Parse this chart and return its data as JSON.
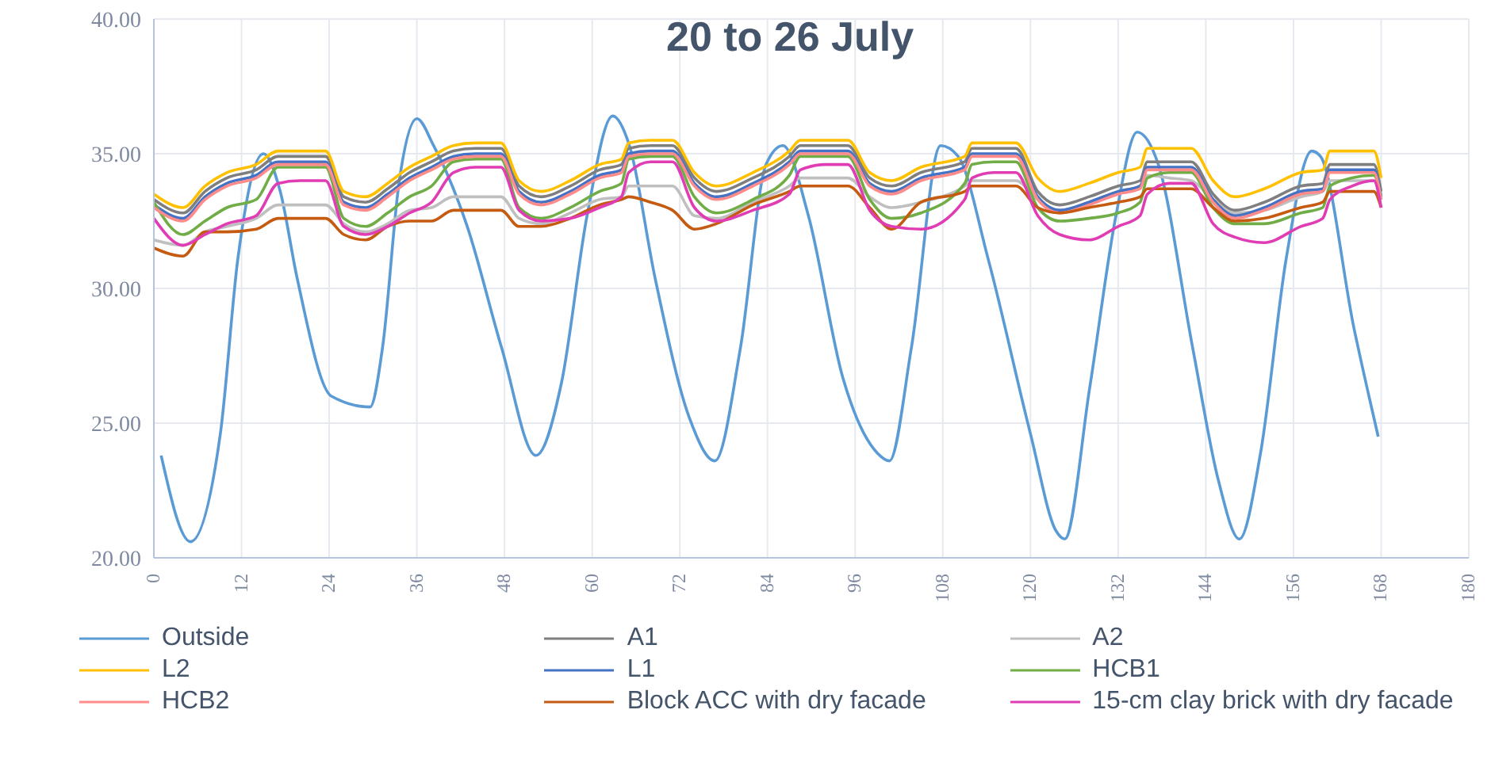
{
  "chart_data": {
    "type": "line",
    "title": "20 to 26 July",
    "xlim": [
      0,
      180
    ],
    "xticks": [
      0,
      12,
      24,
      36,
      48,
      60,
      72,
      84,
      96,
      108,
      120,
      132,
      144,
      156,
      168,
      180
    ],
    "ylim": [
      20,
      40
    ],
    "yticks": [
      {
        "value": 20,
        "label": "20.00"
      },
      {
        "value": 25,
        "label": "25.00"
      },
      {
        "value": 30,
        "label": "30.00"
      },
      {
        "value": 35,
        "label": "35.00"
      },
      {
        "value": 40,
        "label": "40.00"
      }
    ],
    "grid": true,
    "legend": "bottom",
    "marker": "none",
    "line_style": "solid",
    "x": [
      0,
      4,
      7,
      10,
      14,
      17,
      20,
      23.5,
      26,
      29,
      32,
      35,
      38,
      41,
      44,
      47.5,
      50,
      53,
      57,
      61,
      64,
      65,
      68,
      71,
      74,
      77,
      82,
      87,
      88.5,
      92,
      95,
      98,
      101,
      105,
      111,
      112,
      115,
      118,
      121,
      124,
      128,
      132,
      135,
      136,
      139,
      142,
      145,
      148,
      152,
      157,
      160,
      161,
      164,
      167,
      168
    ],
    "series": [
      {
        "name": "Outside",
        "color": "#5b9bd5",
        "x": [
          1,
          5,
          9.1,
          11.5,
          15,
          17.3,
          19.6,
          24.3,
          29.6,
          31.3,
          33.6,
          36,
          38.3,
          42.9,
          47.6,
          52.3,
          55.8,
          59.3,
          62.8,
          65.1,
          68.6,
          73.3,
          76.8,
          80.3,
          83.8,
          86.1,
          89.6,
          94.3,
          99,
          100.7,
          103.7,
          107.7,
          110.1,
          114.2,
          120,
          123.5,
          124.7,
          128.1,
          131.7,
          134.6,
          137.5,
          142.2,
          145.7,
          148.6,
          151.5,
          155,
          158.5,
          159.7,
          164.3,
          167.6
        ],
        "values": [
          23.8,
          20.6,
          24.6,
          31.1,
          35,
          33.6,
          30.4,
          26.0,
          25.6,
          27.8,
          34.0,
          36.3,
          35.3,
          32.3,
          27.8,
          23.8,
          26.5,
          32.7,
          36.4,
          35.3,
          30.4,
          25.2,
          23.6,
          27.8,
          34.6,
          35.3,
          32.7,
          26.7,
          23.9,
          23.6,
          27.8,
          35.3,
          34.9,
          31.1,
          24.6,
          21.0,
          20.7,
          26.3,
          32.7,
          35.8,
          34.6,
          27.8,
          22.9,
          20.7,
          23.9,
          31.1,
          35.1,
          34.9,
          28.5,
          24.5
        ]
      },
      {
        "name": "A1",
        "color": "#7f7f7f",
        "values": [
          33.3,
          32.8,
          33.6,
          34.1,
          34.4,
          34.9,
          34.9,
          34.9,
          33.4,
          33.2,
          33.7,
          34.3,
          34.7,
          35.1,
          35.2,
          35.2,
          33.8,
          33.4,
          33.8,
          34.4,
          34.6,
          35.2,
          35.3,
          35.3,
          34.1,
          33.6,
          34.1,
          34.9,
          35.3,
          35.3,
          35.3,
          34.1,
          33.8,
          34.3,
          34.7,
          35.2,
          35.2,
          35.2,
          33.6,
          33.1,
          33.4,
          33.8,
          34.0,
          34.7,
          34.7,
          34.7,
          33.5,
          32.9,
          33.2,
          33.8,
          33.9,
          34.6,
          34.6,
          34.6,
          33.6
        ]
      },
      {
        "name": "A2",
        "color": "#bfbfbf",
        "values": [
          31.8,
          31.6,
          32.1,
          32.3,
          32.6,
          33.1,
          33.1,
          33.1,
          32.4,
          32.1,
          32.4,
          32.9,
          33.0,
          33.4,
          33.4,
          33.4,
          32.6,
          32.4,
          32.8,
          33.3,
          33.4,
          33.8,
          33.8,
          33.8,
          32.7,
          32.6,
          33.2,
          33.8,
          34.1,
          34.1,
          34.1,
          33.4,
          33.0,
          33.2,
          33.8,
          34.0,
          34.0,
          34.0,
          33.3,
          32.9,
          33.2,
          33.6,
          33.8,
          34.2,
          34.1,
          34.0,
          33.3,
          32.8,
          32.9,
          33.4,
          33.6,
          34.0,
          34.0,
          34.0,
          33.5
        ]
      },
      {
        "name": "L2",
        "color": "#ffc000",
        "values": [
          33.5,
          33.0,
          33.8,
          34.3,
          34.6,
          35.1,
          35.1,
          35.1,
          33.6,
          33.4,
          33.9,
          34.5,
          34.9,
          35.3,
          35.4,
          35.4,
          34.0,
          33.6,
          34.0,
          34.6,
          34.8,
          35.4,
          35.5,
          35.5,
          34.3,
          33.8,
          34.3,
          35.1,
          35.5,
          35.5,
          35.5,
          34.3,
          34.0,
          34.5,
          34.9,
          35.4,
          35.4,
          35.4,
          34.1,
          33.6,
          33.9,
          34.3,
          34.5,
          35.2,
          35.2,
          35.2,
          34.0,
          33.4,
          33.7,
          34.3,
          34.4,
          35.1,
          35.1,
          35.1,
          34.1
        ]
      },
      {
        "name": "L1",
        "color": "#4472c4",
        "values": [
          33.1,
          32.6,
          33.4,
          33.9,
          34.2,
          34.7,
          34.7,
          34.7,
          33.2,
          33.0,
          33.5,
          34.1,
          34.5,
          34.9,
          35.0,
          35.0,
          33.6,
          33.2,
          33.6,
          34.2,
          34.4,
          35.0,
          35.1,
          35.1,
          33.9,
          33.4,
          33.9,
          34.7,
          35.1,
          35.1,
          35.1,
          33.9,
          33.6,
          34.1,
          34.5,
          35.0,
          35.0,
          35.0,
          33.4,
          32.9,
          33.2,
          33.6,
          33.8,
          34.5,
          34.5,
          34.5,
          33.3,
          32.7,
          33.0,
          33.6,
          33.7,
          34.4,
          34.4,
          34.4,
          33.4
        ]
      },
      {
        "name": "HCB1",
        "color": "#70ad47",
        "values": [
          33.2,
          32.0,
          32.5,
          33.0,
          33.3,
          34.5,
          34.5,
          34.5,
          32.6,
          32.3,
          32.8,
          33.4,
          33.8,
          34.7,
          34.8,
          34.8,
          33.0,
          32.6,
          33.0,
          33.6,
          33.9,
          34.8,
          34.9,
          34.9,
          33.4,
          32.8,
          33.3,
          34.2,
          34.9,
          34.9,
          34.9,
          33.3,
          32.6,
          32.8,
          33.9,
          34.6,
          34.7,
          34.7,
          33.0,
          32.5,
          32.6,
          32.8,
          33.2,
          34.1,
          34.3,
          34.3,
          33.0,
          32.4,
          32.4,
          32.8,
          33.0,
          33.8,
          34.1,
          34.2,
          33.3
        ]
      },
      {
        "name": "HCB2",
        "color": "#ff8b8b",
        "values": [
          33.0,
          32.5,
          33.3,
          33.8,
          34.1,
          34.6,
          34.6,
          34.6,
          33.1,
          32.9,
          33.4,
          34.0,
          34.4,
          34.8,
          34.9,
          34.9,
          33.5,
          33.1,
          33.5,
          34.1,
          34.3,
          34.9,
          35.0,
          35.0,
          33.8,
          33.3,
          33.8,
          34.6,
          35.0,
          35.0,
          35.0,
          33.8,
          33.5,
          34.0,
          34.4,
          34.9,
          34.9,
          34.9,
          33.3,
          32.8,
          33.1,
          33.5,
          33.7,
          34.4,
          34.4,
          34.4,
          33.2,
          32.6,
          32.9,
          33.5,
          33.6,
          34.3,
          34.3,
          34.3,
          33.3
        ]
      },
      {
        "name": "Block ACC with dry facade",
        "color": "#c55a11",
        "values": [
          31.5,
          31.2,
          32.1,
          32.1,
          32.2,
          32.6,
          32.6,
          32.6,
          32.0,
          31.8,
          32.3,
          32.5,
          32.5,
          32.9,
          32.9,
          32.9,
          32.3,
          32.3,
          32.6,
          33.1,
          33.3,
          33.4,
          33.2,
          32.9,
          32.2,
          32.4,
          33.1,
          33.6,
          33.8,
          33.8,
          33.8,
          33.0,
          32.2,
          33.2,
          33.6,
          33.8,
          33.8,
          33.8,
          33.0,
          32.8,
          33.0,
          33.2,
          33.4,
          33.7,
          33.7,
          33.7,
          33.0,
          32.5,
          32.6,
          33.0,
          33.2,
          33.6,
          33.6,
          33.6,
          33.0
        ]
      },
      {
        "name": "15-cm clay brick with dry facade",
        "color": "#e03cb4",
        "values": [
          32.6,
          31.6,
          32.0,
          32.4,
          32.7,
          33.9,
          34.0,
          34.0,
          32.3,
          32.0,
          32.3,
          32.8,
          33.2,
          34.3,
          34.5,
          34.5,
          32.9,
          32.5,
          32.6,
          33.0,
          33.4,
          34.3,
          34.7,
          34.7,
          33.0,
          32.5,
          32.9,
          33.5,
          34.4,
          34.6,
          34.6,
          32.9,
          32.3,
          32.2,
          33.3,
          34.1,
          34.3,
          34.3,
          32.7,
          32.0,
          31.8,
          32.3,
          32.7,
          33.5,
          33.9,
          33.9,
          32.4,
          31.9,
          31.7,
          32.3,
          32.6,
          33.3,
          33.8,
          34.0,
          33.0
        ]
      }
    ]
  }
}
